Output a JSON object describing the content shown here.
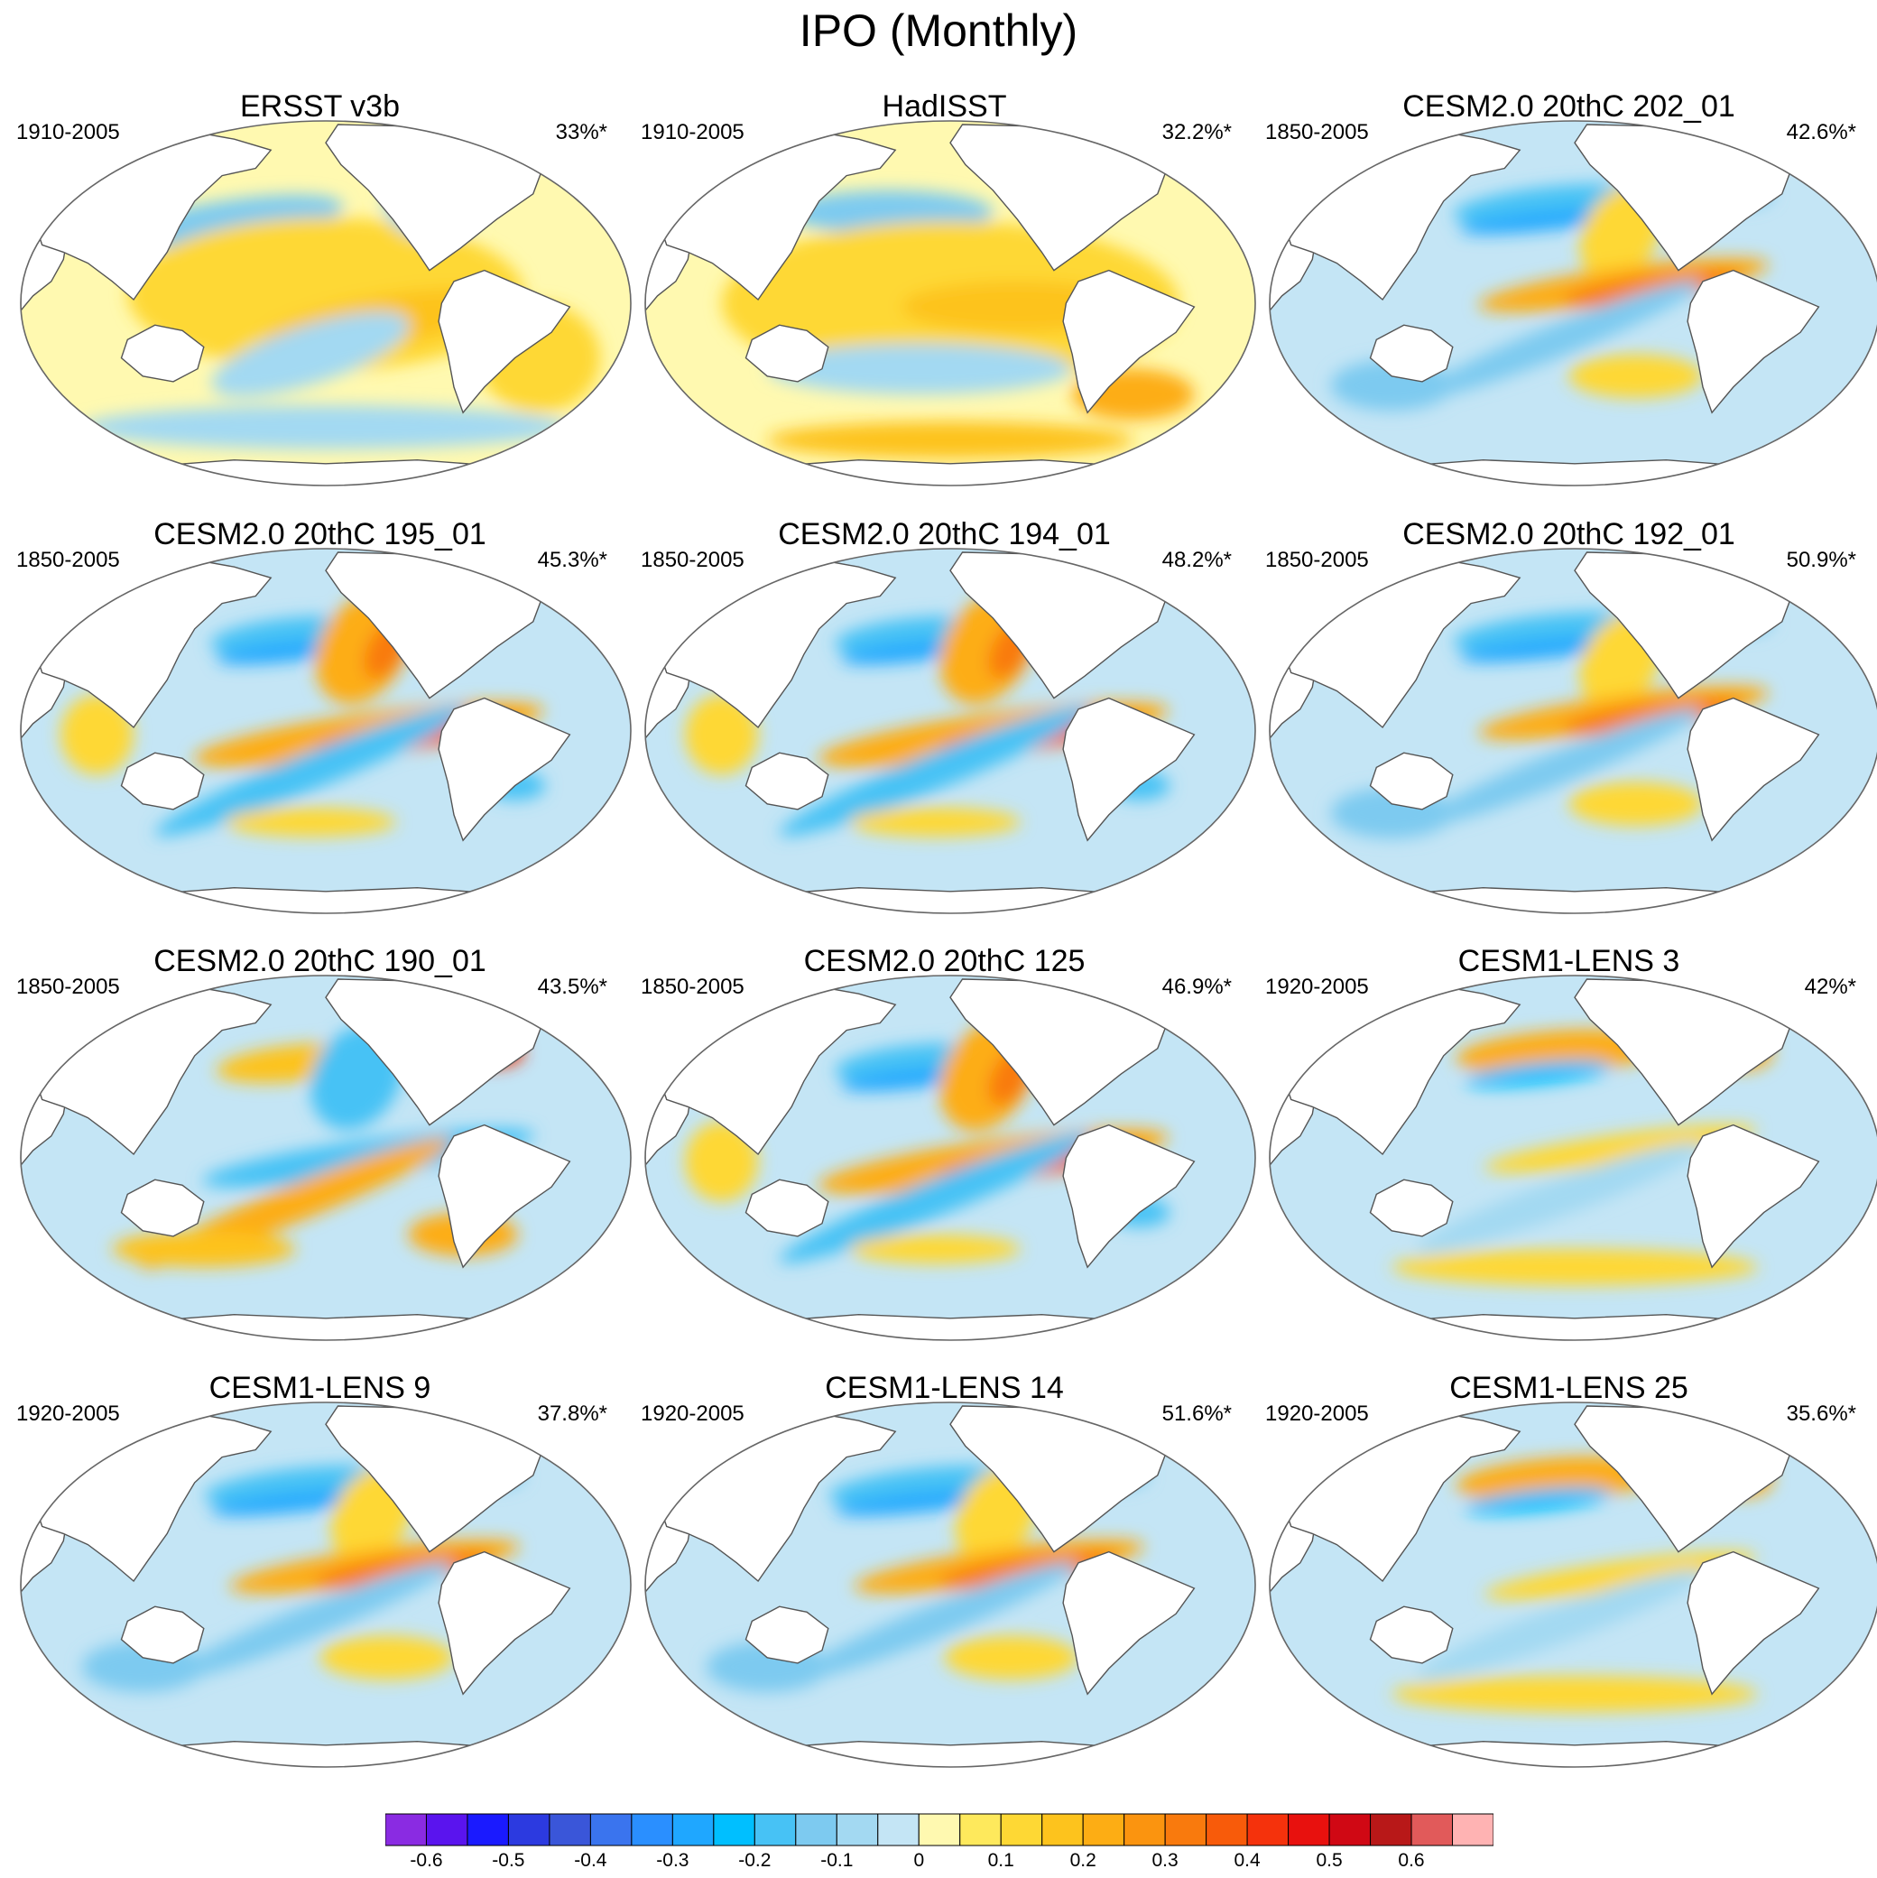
{
  "title": "IPO (Monthly)",
  "panels": [
    {
      "title": "ERSST v3b",
      "period": "1910-2005",
      "percent": "33%*",
      "style": "obs1"
    },
    {
      "title": "HadISST",
      "period": "1910-2005",
      "percent": "32.2%*",
      "style": "obs2"
    },
    {
      "title": "CESM2.0 20thC 202_01",
      "period": "1850-2005",
      "percent": "42.6%*",
      "style": "model"
    },
    {
      "title": "CESM2.0 20thC 195_01",
      "period": "1850-2005",
      "percent": "45.3%*",
      "style": "strong"
    },
    {
      "title": "CESM2.0 20thC 194_01",
      "period": "1850-2005",
      "percent": "48.2%*",
      "style": "strong"
    },
    {
      "title": "CESM2.0 20thC 192_01",
      "period": "1850-2005",
      "percent": "50.9%*",
      "style": "model"
    },
    {
      "title": "CESM2.0 20thC 190_01",
      "period": "1850-2005",
      "percent": "43.5%*",
      "style": "inverted"
    },
    {
      "title": "CESM2.0 20thC 125",
      "period": "1850-2005",
      "percent": "46.9%*",
      "style": "strong"
    },
    {
      "title": "CESM1-LENS 3",
      "period": "1920-2005",
      "percent": "42%*",
      "style": "lens"
    },
    {
      "title": "CESM1-LENS 9",
      "period": "1920-2005",
      "percent": "37.8%*",
      "style": "model"
    },
    {
      "title": "CESM1-LENS 14",
      "period": "1920-2005",
      "percent": "51.6%*",
      "style": "model"
    },
    {
      "title": "CESM1-LENS 25",
      "period": "1920-2005",
      "percent": "35.6%*",
      "style": "lens"
    }
  ],
  "colorbar": {
    "colors": [
      "#8a2be2",
      "#5a14ee",
      "#1a1aff",
      "#2c3ae0",
      "#3a56d9",
      "#3a74ee",
      "#2a8fff",
      "#1fa7ff",
      "#00bfff",
      "#47c2f5",
      "#7dcaf0",
      "#a3d9f2",
      "#c4e5f5",
      "#fff9b0",
      "#fee95c",
      "#fed834",
      "#fdc31d",
      "#fdad14",
      "#fb940f",
      "#f97a0d",
      "#f85b0a",
      "#f5320c",
      "#e8110e",
      "#d00814",
      "#b81818",
      "#e15a5a",
      "#ffb3b3"
    ],
    "tick_labels": [
      "-0.6",
      "-0.5",
      "-0.4",
      "-0.3",
      "-0.2",
      "-0.1",
      "0",
      "0.1",
      "0.2",
      "0.3",
      "0.4",
      "0.5",
      "0.6"
    ],
    "tick_values": [
      -0.6,
      -0.5,
      -0.4,
      -0.3,
      -0.2,
      -0.1,
      0,
      0.1,
      0.2,
      0.3,
      0.4,
      0.5,
      0.6
    ]
  }
}
